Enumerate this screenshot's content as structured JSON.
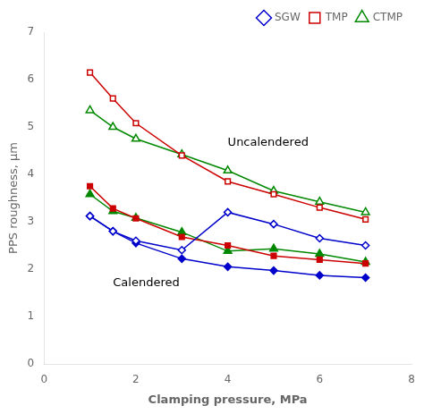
{
  "chart_data": {
    "type": "line",
    "x": [
      1,
      1.5,
      2,
      3,
      4,
      5,
      6,
      7
    ],
    "series": [
      {
        "name": "SGW",
        "color": "#0000cc",
        "marker": "diamond_open",
        "values": [
          3.12,
          2.8,
          2.6,
          2.4,
          3.2,
          2.95,
          2.65,
          2.5
        ]
      },
      {
        "name": "TMP",
        "color": "#cc0000",
        "marker": "square_open",
        "values": [
          6.15,
          5.6,
          5.08,
          4.4,
          3.85,
          3.58,
          3.3,
          3.05
        ]
      },
      {
        "name": "CTMP",
        "color": "#008800",
        "marker": "triangle_open",
        "values": [
          5.35,
          5.0,
          4.75,
          4.42,
          4.08,
          3.65,
          3.42,
          3.2
        ]
      },
      {
        "color": "#0000cc",
        "marker": "diamond",
        "values": [
          3.12,
          2.8,
          2.55,
          2.22,
          2.05,
          1.97,
          1.87,
          1.82
        ]
      },
      {
        "color": "#cc0000",
        "marker": "square",
        "values": [
          3.75,
          3.28,
          3.07,
          2.68,
          2.5,
          2.28,
          2.2,
          2.12
        ]
      },
      {
        "color": "#008800",
        "marker": "triangle",
        "values": [
          3.58,
          3.22,
          3.08,
          2.78,
          2.38,
          2.43,
          2.32,
          2.15
        ]
      }
    ],
    "xlabel": "Clamping pressure, MPa",
    "ylabel": "PPS roughness, μm",
    "xlim": [
      0,
      8
    ],
    "ylim": [
      0,
      7
    ],
    "xticks": [
      0,
      2,
      4,
      6,
      8
    ],
    "yticks": [
      0,
      1,
      2,
      3,
      4,
      5,
      6,
      7
    ],
    "annotations": [
      {
        "text": "Uncalendered",
        "x": 4.0,
        "y": 4.55
      },
      {
        "text": "Calendered",
        "x": 1.5,
        "y": 1.58
      }
    ],
    "grid": false,
    "legend": "upper right"
  }
}
